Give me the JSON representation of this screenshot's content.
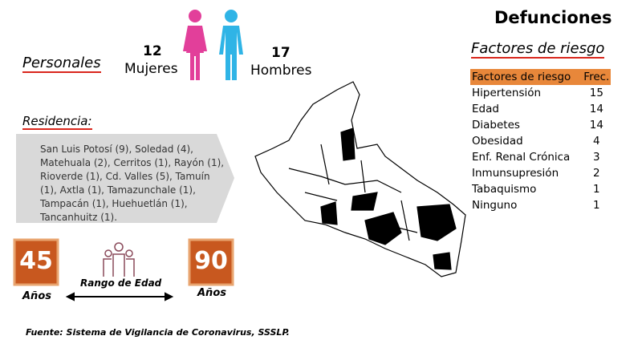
{
  "title": "Defunciones",
  "personales": {
    "heading": "Personales",
    "women_count": "12",
    "women_label": "Mujeres",
    "men_count": "17",
    "men_label": "Hombres"
  },
  "residencia": {
    "heading": "Residencia:",
    "text": "San Luis Potosí (9), Soledad (4), Matehuala (2), Cerritos (1), Rayón (1), Rioverde (1), Cd. Valles (5), Tamuín (1), Axtla (1), Tamazunchale (1), Tampacán (1), Huehuetlán (1), Tancanhuitz (1)."
  },
  "edad": {
    "min": "45",
    "min_unit": "Años",
    "max": "90",
    "max_unit": "Años",
    "label": "Rango de Edad"
  },
  "factores": {
    "heading": "Factores de riesgo",
    "table": {
      "header": [
        "Factores de riesgo",
        "Frec."
      ],
      "rows": [
        [
          "Hipertensión",
          "15"
        ],
        [
          "Edad",
          "14"
        ],
        [
          "Diabetes",
          "14"
        ],
        [
          "Obesidad",
          "4"
        ],
        [
          "Enf. Renal Crónica",
          "3"
        ],
        [
          "Inmunsupresión",
          "2"
        ],
        [
          "Tabaquismo",
          "1"
        ],
        [
          "Ninguno",
          "1"
        ]
      ]
    }
  },
  "source": "Fuente: Sistema de Vigilancia de Coronavirus, SSSLP."
}
